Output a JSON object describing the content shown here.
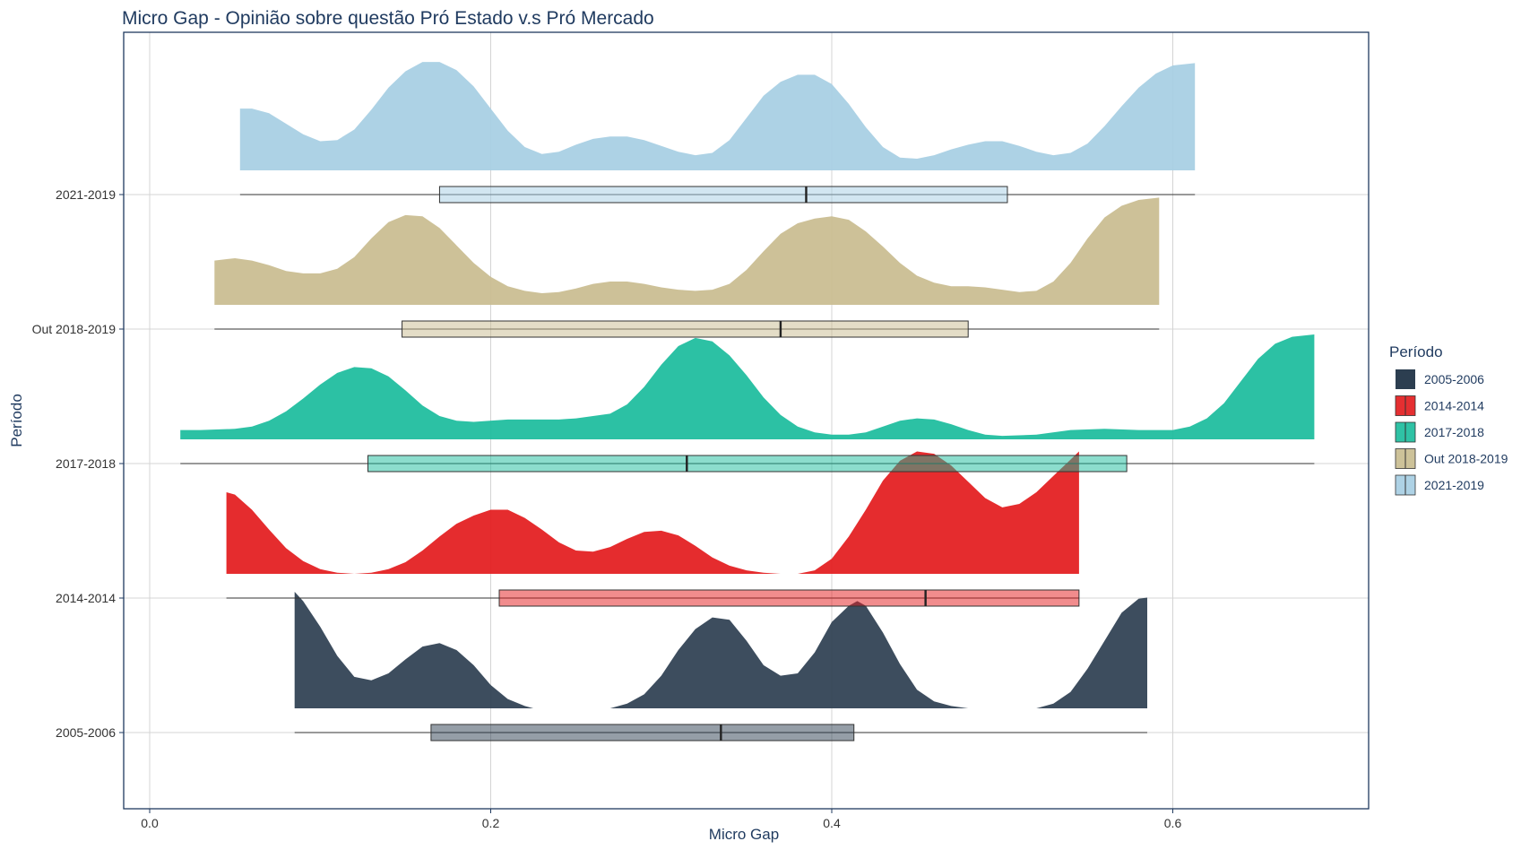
{
  "chart_data": {
    "type": "ridgeline-boxplot",
    "title": "Micro Gap - Opinião sobre questão Pró Estado v.s Pró Mercado",
    "xlabel": "Micro Gap",
    "ylabel": "Período",
    "xlim": [
      -0.04,
      0.715
    ],
    "x_ticks": [
      0.0,
      0.2,
      0.4,
      0.6
    ],
    "x_tick_labels": [
      "0.0",
      "0.2",
      "0.4",
      "0.6"
    ],
    "grid": true,
    "legend": {
      "title": "Período",
      "position": "right"
    },
    "categories": [
      "2005-2006",
      "2014-2014",
      "2017-2018",
      "Out 2018-2019",
      "2021-2019"
    ],
    "series": [
      {
        "name": "2005-2006",
        "color": "#2c3e50",
        "box": {
          "min": 0.085,
          "q1": 0.165,
          "median": 0.335,
          "q3": 0.413,
          "max": 0.585
        },
        "density": [
          [
            0.085,
            1.0
          ],
          [
            0.09,
            0.92
          ],
          [
            0.1,
            0.7
          ],
          [
            0.11,
            0.45
          ],
          [
            0.12,
            0.27
          ],
          [
            0.13,
            0.24
          ],
          [
            0.14,
            0.3
          ],
          [
            0.15,
            0.42
          ],
          [
            0.16,
            0.53
          ],
          [
            0.17,
            0.56
          ],
          [
            0.18,
            0.5
          ],
          [
            0.19,
            0.37
          ],
          [
            0.2,
            0.2
          ],
          [
            0.21,
            0.08
          ],
          [
            0.22,
            0.02
          ],
          [
            0.225,
            0.0
          ],
          [
            0.27,
            0.0
          ],
          [
            0.28,
            0.04
          ],
          [
            0.29,
            0.12
          ],
          [
            0.3,
            0.28
          ],
          [
            0.31,
            0.5
          ],
          [
            0.32,
            0.68
          ],
          [
            0.33,
            0.78
          ],
          [
            0.34,
            0.76
          ],
          [
            0.35,
            0.58
          ],
          [
            0.36,
            0.37
          ],
          [
            0.37,
            0.28
          ],
          [
            0.38,
            0.3
          ],
          [
            0.39,
            0.48
          ],
          [
            0.4,
            0.74
          ],
          [
            0.41,
            0.88
          ],
          [
            0.415,
            0.92
          ],
          [
            0.42,
            0.88
          ],
          [
            0.43,
            0.65
          ],
          [
            0.44,
            0.38
          ],
          [
            0.45,
            0.16
          ],
          [
            0.46,
            0.06
          ],
          [
            0.47,
            0.02
          ],
          [
            0.48,
            0.0
          ],
          [
            0.52,
            0.0
          ],
          [
            0.53,
            0.04
          ],
          [
            0.54,
            0.14
          ],
          [
            0.55,
            0.34
          ],
          [
            0.56,
            0.58
          ],
          [
            0.57,
            0.82
          ],
          [
            0.58,
            0.94
          ],
          [
            0.585,
            0.95
          ]
        ]
      },
      {
        "name": "2014-2014",
        "color": "#e31a1c",
        "box": {
          "min": 0.045,
          "q1": 0.205,
          "median": 0.455,
          "q3": 0.545,
          "max": 0.545
        },
        "density": [
          [
            0.045,
            0.7
          ],
          [
            0.05,
            0.68
          ],
          [
            0.06,
            0.55
          ],
          [
            0.07,
            0.38
          ],
          [
            0.08,
            0.22
          ],
          [
            0.09,
            0.11
          ],
          [
            0.1,
            0.04
          ],
          [
            0.11,
            0.01
          ],
          [
            0.12,
            0.0
          ],
          [
            0.13,
            0.01
          ],
          [
            0.14,
            0.04
          ],
          [
            0.15,
            0.1
          ],
          [
            0.16,
            0.2
          ],
          [
            0.17,
            0.32
          ],
          [
            0.18,
            0.43
          ],
          [
            0.19,
            0.5
          ],
          [
            0.2,
            0.55
          ],
          [
            0.21,
            0.55
          ],
          [
            0.22,
            0.48
          ],
          [
            0.23,
            0.38
          ],
          [
            0.24,
            0.27
          ],
          [
            0.25,
            0.2
          ],
          [
            0.26,
            0.19
          ],
          [
            0.27,
            0.23
          ],
          [
            0.28,
            0.3
          ],
          [
            0.29,
            0.36
          ],
          [
            0.3,
            0.37
          ],
          [
            0.31,
            0.33
          ],
          [
            0.32,
            0.24
          ],
          [
            0.33,
            0.14
          ],
          [
            0.34,
            0.07
          ],
          [
            0.35,
            0.03
          ],
          [
            0.36,
            0.01
          ],
          [
            0.37,
            0.0
          ],
          [
            0.38,
            0.0
          ],
          [
            0.39,
            0.03
          ],
          [
            0.4,
            0.13
          ],
          [
            0.41,
            0.32
          ],
          [
            0.42,
            0.55
          ],
          [
            0.43,
            0.8
          ],
          [
            0.44,
            0.97
          ],
          [
            0.45,
            1.05
          ],
          [
            0.46,
            1.03
          ],
          [
            0.47,
            0.93
          ],
          [
            0.48,
            0.79
          ],
          [
            0.49,
            0.65
          ],
          [
            0.5,
            0.57
          ],
          [
            0.51,
            0.6
          ],
          [
            0.52,
            0.7
          ],
          [
            0.53,
            0.84
          ],
          [
            0.54,
            0.98
          ],
          [
            0.545,
            1.05
          ]
        ]
      },
      {
        "name": "2017-2018",
        "color": "#1abc9c",
        "box": {
          "min": 0.018,
          "q1": 0.128,
          "median": 0.315,
          "q3": 0.573,
          "max": 0.683
        },
        "density": [
          [
            0.018,
            0.08
          ],
          [
            0.03,
            0.08
          ],
          [
            0.05,
            0.09
          ],
          [
            0.06,
            0.11
          ],
          [
            0.07,
            0.16
          ],
          [
            0.08,
            0.24
          ],
          [
            0.09,
            0.35
          ],
          [
            0.1,
            0.47
          ],
          [
            0.11,
            0.57
          ],
          [
            0.12,
            0.62
          ],
          [
            0.13,
            0.61
          ],
          [
            0.14,
            0.54
          ],
          [
            0.15,
            0.42
          ],
          [
            0.16,
            0.29
          ],
          [
            0.17,
            0.2
          ],
          [
            0.18,
            0.16
          ],
          [
            0.19,
            0.15
          ],
          [
            0.21,
            0.17
          ],
          [
            0.24,
            0.17
          ],
          [
            0.25,
            0.18
          ],
          [
            0.27,
            0.22
          ],
          [
            0.28,
            0.3
          ],
          [
            0.29,
            0.45
          ],
          [
            0.3,
            0.64
          ],
          [
            0.31,
            0.8
          ],
          [
            0.32,
            0.87
          ],
          [
            0.33,
            0.84
          ],
          [
            0.34,
            0.72
          ],
          [
            0.35,
            0.55
          ],
          [
            0.36,
            0.36
          ],
          [
            0.37,
            0.21
          ],
          [
            0.38,
            0.11
          ],
          [
            0.39,
            0.06
          ],
          [
            0.4,
            0.04
          ],
          [
            0.41,
            0.04
          ],
          [
            0.42,
            0.06
          ],
          [
            0.43,
            0.11
          ],
          [
            0.44,
            0.16
          ],
          [
            0.45,
            0.18
          ],
          [
            0.46,
            0.17
          ],
          [
            0.47,
            0.13
          ],
          [
            0.48,
            0.08
          ],
          [
            0.49,
            0.04
          ],
          [
            0.5,
            0.03
          ],
          [
            0.52,
            0.04
          ],
          [
            0.54,
            0.08
          ],
          [
            0.56,
            0.09
          ],
          [
            0.58,
            0.08
          ],
          [
            0.6,
            0.08
          ],
          [
            0.61,
            0.11
          ],
          [
            0.62,
            0.18
          ],
          [
            0.63,
            0.31
          ],
          [
            0.64,
            0.5
          ],
          [
            0.65,
            0.69
          ],
          [
            0.66,
            0.82
          ],
          [
            0.67,
            0.88
          ],
          [
            0.683,
            0.9
          ]
        ]
      },
      {
        "name": "Out 2018-2019",
        "color": "#c9bc8f",
        "box": {
          "min": 0.038,
          "q1": 0.148,
          "median": 0.37,
          "q3": 0.48,
          "max": 0.592
        },
        "density": [
          [
            0.038,
            0.38
          ],
          [
            0.05,
            0.4
          ],
          [
            0.06,
            0.38
          ],
          [
            0.07,
            0.34
          ],
          [
            0.08,
            0.29
          ],
          [
            0.09,
            0.27
          ],
          [
            0.1,
            0.27
          ],
          [
            0.11,
            0.31
          ],
          [
            0.12,
            0.41
          ],
          [
            0.13,
            0.57
          ],
          [
            0.14,
            0.71
          ],
          [
            0.15,
            0.77
          ],
          [
            0.16,
            0.76
          ],
          [
            0.17,
            0.66
          ],
          [
            0.18,
            0.51
          ],
          [
            0.19,
            0.36
          ],
          [
            0.2,
            0.24
          ],
          [
            0.21,
            0.16
          ],
          [
            0.22,
            0.12
          ],
          [
            0.23,
            0.1
          ],
          [
            0.24,
            0.11
          ],
          [
            0.25,
            0.14
          ],
          [
            0.26,
            0.18
          ],
          [
            0.27,
            0.2
          ],
          [
            0.28,
            0.2
          ],
          [
            0.29,
            0.18
          ],
          [
            0.3,
            0.15
          ],
          [
            0.31,
            0.13
          ],
          [
            0.32,
            0.12
          ],
          [
            0.33,
            0.13
          ],
          [
            0.34,
            0.18
          ],
          [
            0.35,
            0.3
          ],
          [
            0.36,
            0.46
          ],
          [
            0.37,
            0.61
          ],
          [
            0.38,
            0.7
          ],
          [
            0.39,
            0.74
          ],
          [
            0.4,
            0.76
          ],
          [
            0.41,
            0.73
          ],
          [
            0.42,
            0.63
          ],
          [
            0.43,
            0.5
          ],
          [
            0.44,
            0.36
          ],
          [
            0.45,
            0.25
          ],
          [
            0.46,
            0.19
          ],
          [
            0.47,
            0.16
          ],
          [
            0.48,
            0.16
          ],
          [
            0.49,
            0.15
          ],
          [
            0.5,
            0.13
          ],
          [
            0.51,
            0.11
          ],
          [
            0.52,
            0.12
          ],
          [
            0.53,
            0.2
          ],
          [
            0.54,
            0.36
          ],
          [
            0.55,
            0.57
          ],
          [
            0.56,
            0.75
          ],
          [
            0.57,
            0.85
          ],
          [
            0.58,
            0.9
          ],
          [
            0.592,
            0.92
          ]
        ]
      },
      {
        "name": "2021-2019",
        "color": "#a6cee3",
        "box": {
          "min": 0.053,
          "q1": 0.17,
          "median": 0.385,
          "q3": 0.503,
          "max": 0.613
        },
        "density": [
          [
            0.053,
            0.53
          ],
          [
            0.06,
            0.53
          ],
          [
            0.07,
            0.49
          ],
          [
            0.08,
            0.4
          ],
          [
            0.09,
            0.31
          ],
          [
            0.1,
            0.25
          ],
          [
            0.11,
            0.26
          ],
          [
            0.12,
            0.35
          ],
          [
            0.13,
            0.52
          ],
          [
            0.14,
            0.71
          ],
          [
            0.15,
            0.85
          ],
          [
            0.16,
            0.93
          ],
          [
            0.17,
            0.93
          ],
          [
            0.18,
            0.86
          ],
          [
            0.19,
            0.72
          ],
          [
            0.2,
            0.53
          ],
          [
            0.21,
            0.34
          ],
          [
            0.22,
            0.2
          ],
          [
            0.23,
            0.14
          ],
          [
            0.24,
            0.16
          ],
          [
            0.25,
            0.22
          ],
          [
            0.26,
            0.27
          ],
          [
            0.27,
            0.29
          ],
          [
            0.28,
            0.29
          ],
          [
            0.29,
            0.26
          ],
          [
            0.3,
            0.21
          ],
          [
            0.31,
            0.16
          ],
          [
            0.32,
            0.13
          ],
          [
            0.33,
            0.15
          ],
          [
            0.34,
            0.26
          ],
          [
            0.35,
            0.45
          ],
          [
            0.36,
            0.64
          ],
          [
            0.37,
            0.76
          ],
          [
            0.38,
            0.82
          ],
          [
            0.39,
            0.82
          ],
          [
            0.4,
            0.74
          ],
          [
            0.41,
            0.57
          ],
          [
            0.42,
            0.37
          ],
          [
            0.43,
            0.2
          ],
          [
            0.44,
            0.11
          ],
          [
            0.45,
            0.1
          ],
          [
            0.46,
            0.13
          ],
          [
            0.47,
            0.18
          ],
          [
            0.48,
            0.22
          ],
          [
            0.49,
            0.25
          ],
          [
            0.5,
            0.25
          ],
          [
            0.51,
            0.21
          ],
          [
            0.52,
            0.16
          ],
          [
            0.53,
            0.13
          ],
          [
            0.54,
            0.15
          ],
          [
            0.55,
            0.23
          ],
          [
            0.56,
            0.38
          ],
          [
            0.57,
            0.55
          ],
          [
            0.58,
            0.71
          ],
          [
            0.59,
            0.83
          ],
          [
            0.6,
            0.9
          ],
          [
            0.613,
            0.92
          ]
        ]
      }
    ]
  }
}
